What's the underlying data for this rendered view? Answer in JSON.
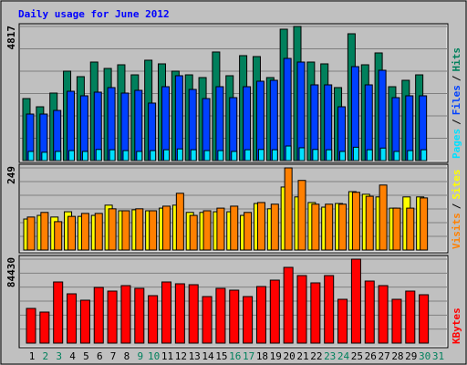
{
  "chart_data": [
    {
      "type": "bar",
      "title": "Daily usage for June 2012",
      "ylim": [
        0,
        4817
      ],
      "yticks": [
        4817
      ],
      "separator": "/",
      "series": [
        {
          "name": "Hits",
          "color": "#00805c",
          "values": [
            2228,
            1933,
            2425,
            3212,
            3015,
            3539,
            3310,
            3441,
            3080,
            3605,
            3474,
            3212,
            3080,
            2982,
            3900,
            3048,
            3769,
            3736,
            2982,
            4719,
            4817,
            3539,
            3474,
            2622,
            4555,
            3441,
            3867,
            2654,
            2884,
            3080,
            null
          ]
        },
        {
          "name": "Files",
          "color": "#0040ff",
          "values": [
            1671,
            1671,
            1802,
            2490,
            2327,
            2458,
            2622,
            2425,
            2523,
            2065,
            2654,
            3048,
            2556,
            2228,
            2654,
            2261,
            2654,
            2851,
            2884,
            3670,
            3539,
            2720,
            2720,
            1933,
            3375,
            2720,
            3244,
            2261,
            2327,
            2327,
            null
          ]
        },
        {
          "name": "Pages",
          "color": "#00e0ff",
          "values": [
            330,
            300,
            330,
            360,
            330,
            400,
            390,
            360,
            330,
            360,
            390,
            420,
            390,
            360,
            360,
            330,
            390,
            400,
            390,
            524,
            460,
            400,
            390,
            330,
            480,
            390,
            450,
            330,
            360,
            390,
            null
          ]
        }
      ]
    },
    {
      "type": "bar",
      "ylim": [
        0,
        249
      ],
      "yticks": [
        249
      ],
      "separator": "/",
      "series": [
        {
          "name": "Sites",
          "color": "#ffff00",
          "values": [
            94,
            105,
            100,
            116,
            102,
            105,
            136,
            119,
            122,
            119,
            127,
            136,
            114,
            114,
            116,
            116,
            105,
            141,
            125,
            191,
            161,
            144,
            130,
            141,
            177,
            169,
            161,
            127,
            161,
            161,
            null
          ]
        },
        {
          "name": "Visits",
          "color": "#ff8000",
          "values": [
            100,
            114,
            86,
            102,
            111,
            111,
            125,
            119,
            125,
            119,
            133,
            172,
            105,
            119,
            127,
            133,
            114,
            144,
            139,
            249,
            211,
            139,
            139,
            139,
            175,
            163,
            197,
            127,
            127,
            158,
            null
          ]
        }
      ]
    },
    {
      "type": "bar",
      "ylim": [
        0,
        84430
      ],
      "yticks": [
        84430
      ],
      "categories": [
        "1",
        "2",
        "3",
        "4",
        "5",
        "6",
        "7",
        "8",
        "9",
        "10",
        "11",
        "12",
        "13",
        "14",
        "15",
        "16",
        "17",
        "18",
        "19",
        "20",
        "21",
        "22",
        "23",
        "24",
        "25",
        "26",
        "27",
        "28",
        "29",
        "30",
        "31"
      ],
      "category_colors": [
        "#000000",
        "#00805c",
        "#00805c",
        "#000000",
        "#000000",
        "#000000",
        "#000000",
        "#000000",
        "#00805c",
        "#00805c",
        "#000000",
        "#000000",
        "#000000",
        "#000000",
        "#000000",
        "#00805c",
        "#00805c",
        "#000000",
        "#000000",
        "#000000",
        "#000000",
        "#000000",
        "#00805c",
        "#00805c",
        "#000000",
        "#000000",
        "#000000",
        "#000000",
        "#000000",
        "#00805c",
        "#00805c"
      ],
      "series": [
        {
          "name": "KBytes",
          "color": "#ff0000",
          "values": [
            34873,
            31202,
            61486,
            49556,
            43132,
            55980,
            52309,
            57815,
            55062,
            47720,
            61486,
            59651,
            58733,
            46803,
            55062,
            53227,
            46803,
            56897,
            63321,
            76169,
            67910,
            60568,
            67910,
            44050,
            84430,
            62404,
            57815,
            44050,
            52309,
            48638,
            null
          ]
        }
      ]
    }
  ]
}
